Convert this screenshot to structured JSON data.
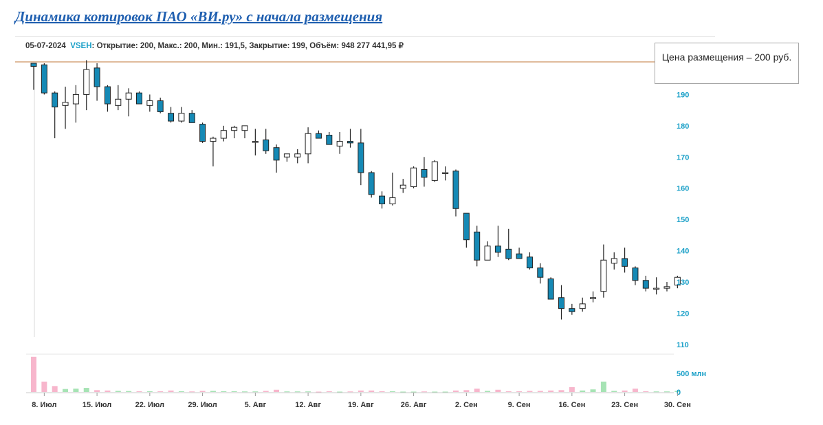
{
  "title": "Динамика котировок ПАО «ВИ.ру» с начала размещения",
  "info": {
    "date": "05-07-2024",
    "ticker": "VSEH",
    "ohlc": ": Открытие: 200, Макс.: 200, Мин.: 191,5, Закрытие: 199, Объём: 948 277 441,95 ₽"
  },
  "callout": "Цена размещения – 200 руб.",
  "chart_data": {
    "type": "candlestick",
    "price_ylim": [
      108,
      200
    ],
    "price_yticks": [
      110,
      120,
      130,
      140,
      150,
      160,
      170,
      180,
      190
    ],
    "volume_yticks": [
      {
        "value": 0,
        "label": "0"
      },
      {
        "value": 500,
        "label": "500 млн"
      }
    ],
    "volume_ylim": [
      0,
      1000
    ],
    "placement_price": 200,
    "x_ticks": [
      {
        "index": 1,
        "label": "8. Июл"
      },
      {
        "index": 6,
        "label": "15. Июл"
      },
      {
        "index": 11,
        "label": "22. Июл"
      },
      {
        "index": 16,
        "label": "29. Июл"
      },
      {
        "index": 21,
        "label": "5. Авг"
      },
      {
        "index": 26,
        "label": "12. Авг"
      },
      {
        "index": 31,
        "label": "19. Авг"
      },
      {
        "index": 36,
        "label": "26. Авг"
      },
      {
        "index": 41,
        "label": "2. Сен"
      },
      {
        "index": 46,
        "label": "9. Сен"
      },
      {
        "index": 51,
        "label": "16. Сен"
      },
      {
        "index": 56,
        "label": "23. Сен"
      },
      {
        "index": 61,
        "label": "30. Сен"
      }
    ],
    "candles": [
      {
        "o": 200,
        "h": 200,
        "l": 191.5,
        "c": 199,
        "v": 948
      },
      {
        "o": 199.5,
        "h": 200,
        "l": 190,
        "c": 190.5,
        "v": 280
      },
      {
        "o": 190.5,
        "h": 191,
        "l": 176,
        "c": 186,
        "v": 160
      },
      {
        "o": 186.5,
        "h": 192.5,
        "l": 179,
        "c": 187.5,
        "v": 80
      },
      {
        "o": 187,
        "h": 193,
        "l": 181,
        "c": 190,
        "v": 90
      },
      {
        "o": 190,
        "h": 201,
        "l": 185,
        "c": 198,
        "v": 110
      },
      {
        "o": 198.5,
        "h": 200,
        "l": 188,
        "c": 192.5,
        "v": 50
      },
      {
        "o": 192.5,
        "h": 193,
        "l": 184.5,
        "c": 187,
        "v": 40
      },
      {
        "o": 186.5,
        "h": 193,
        "l": 185,
        "c": 188.5,
        "v": 30
      },
      {
        "o": 188.5,
        "h": 192,
        "l": 183,
        "c": 190.5,
        "v": 25
      },
      {
        "o": 190.5,
        "h": 191,
        "l": 187,
        "c": 187,
        "v": 20
      },
      {
        "o": 186.5,
        "h": 190,
        "l": 184.5,
        "c": 188,
        "v": 20
      },
      {
        "o": 188,
        "h": 189,
        "l": 184,
        "c": 184.5,
        "v": 20
      },
      {
        "o": 184,
        "h": 186,
        "l": 181,
        "c": 181.5,
        "v": 40
      },
      {
        "o": 181.5,
        "h": 186,
        "l": 181,
        "c": 184,
        "v": 20
      },
      {
        "o": 184,
        "h": 185,
        "l": 181.5,
        "c": 181,
        "v": 15
      },
      {
        "o": 180.5,
        "h": 181,
        "l": 174.5,
        "c": 175,
        "v": 30
      },
      {
        "o": 175,
        "h": 176.5,
        "l": 167,
        "c": 176,
        "v": 30
      },
      {
        "o": 176,
        "h": 180,
        "l": 175,
        "c": 178.5,
        "v": 20
      },
      {
        "o": 178.5,
        "h": 180,
        "l": 176,
        "c": 179.5,
        "v": 20
      },
      {
        "o": 178.5,
        "h": 180,
        "l": 176,
        "c": 180,
        "v": 15
      },
      {
        "o": 175,
        "h": 179,
        "l": 170.5,
        "c": 175,
        "v": 15
      },
      {
        "o": 175.5,
        "h": 179,
        "l": 171,
        "c": 172,
        "v": 30
      },
      {
        "o": 173,
        "h": 174,
        "l": 165,
        "c": 169,
        "v": 60
      },
      {
        "o": 170,
        "h": 171,
        "l": 168.5,
        "c": 171,
        "v": 15
      },
      {
        "o": 170,
        "h": 172.5,
        "l": 168,
        "c": 171,
        "v": 15
      },
      {
        "o": 171,
        "h": 179.5,
        "l": 168,
        "c": 177.5,
        "v": 15
      },
      {
        "o": 177.5,
        "h": 178.5,
        "l": 176,
        "c": 176,
        "v": 10
      },
      {
        "o": 177,
        "h": 178,
        "l": 174,
        "c": 174,
        "v": 20
      },
      {
        "o": 173.5,
        "h": 178,
        "l": 171,
        "c": 175,
        "v": 10
      },
      {
        "o": 175,
        "h": 179,
        "l": 173,
        "c": 174.5,
        "v": 15
      },
      {
        "o": 174.5,
        "h": 179,
        "l": 161,
        "c": 165,
        "v": 40
      },
      {
        "o": 165,
        "h": 165.5,
        "l": 157,
        "c": 158,
        "v": 40
      },
      {
        "o": 157.5,
        "h": 159,
        "l": 153.5,
        "c": 155,
        "v": 20
      },
      {
        "o": 155,
        "h": 165,
        "l": 154.5,
        "c": 157,
        "v": 20
      },
      {
        "o": 160,
        "h": 163,
        "l": 158.5,
        "c": 161,
        "v": 10
      },
      {
        "o": 160.5,
        "h": 167,
        "l": 160,
        "c": 166.5,
        "v": 10
      },
      {
        "o": 166,
        "h": 170,
        "l": 160.5,
        "c": 163.5,
        "v": 15
      },
      {
        "o": 162.5,
        "h": 169,
        "l": 162,
        "c": 168.5,
        "v": 10
      },
      {
        "o": 165,
        "h": 167,
        "l": 162.5,
        "c": 165,
        "v": 10
      },
      {
        "o": 165.5,
        "h": 166,
        "l": 151,
        "c": 153.5,
        "v": 40
      },
      {
        "o": 152,
        "h": 152,
        "l": 141,
        "c": 143.5,
        "v": 50
      },
      {
        "o": 146,
        "h": 148,
        "l": 135,
        "c": 137,
        "v": 90
      },
      {
        "o": 137,
        "h": 143,
        "l": 137,
        "c": 141.5,
        "v": 30
      },
      {
        "o": 141.5,
        "h": 148,
        "l": 138,
        "c": 139.5,
        "v": 60
      },
      {
        "o": 140.5,
        "h": 147,
        "l": 137,
        "c": 137.5,
        "v": 20
      },
      {
        "o": 139,
        "h": 141,
        "l": 137.5,
        "c": 137.5,
        "v": 20
      },
      {
        "o": 138,
        "h": 139.5,
        "l": 134,
        "c": 134.5,
        "v": 30
      },
      {
        "o": 134.5,
        "h": 136,
        "l": 129.5,
        "c": 131.5,
        "v": 30
      },
      {
        "o": 131,
        "h": 131.5,
        "l": 124.5,
        "c": 124.5,
        "v": 40
      },
      {
        "o": 125,
        "h": 129,
        "l": 118,
        "c": 121.5,
        "v": 50
      },
      {
        "o": 121.5,
        "h": 123,
        "l": 119.5,
        "c": 120.5,
        "v": 130
      },
      {
        "o": 121.5,
        "h": 125,
        "l": 120.5,
        "c": 123,
        "v": 40
      },
      {
        "o": 125,
        "h": 127,
        "l": 123.5,
        "c": 125,
        "v": 70
      },
      {
        "o": 127,
        "h": 142,
        "l": 125,
        "c": 137,
        "v": 280
      },
      {
        "o": 136,
        "h": 139.5,
        "l": 134,
        "c": 137.5,
        "v": 30
      },
      {
        "o": 137.5,
        "h": 141,
        "l": 133,
        "c": 135,
        "v": 40
      },
      {
        "o": 134.5,
        "h": 135,
        "l": 129,
        "c": 130.5,
        "v": 90
      },
      {
        "o": 130.5,
        "h": 132,
        "l": 127,
        "c": 128,
        "v": 20
      },
      {
        "o": 128,
        "h": 131.5,
        "l": 126,
        "c": 128,
        "v": 15
      },
      {
        "o": 128,
        "h": 130,
        "l": 127,
        "c": 128.5,
        "v": 15
      },
      {
        "o": 129,
        "h": 132,
        "l": 128,
        "c": 131.5,
        "v": 30
      }
    ]
  }
}
